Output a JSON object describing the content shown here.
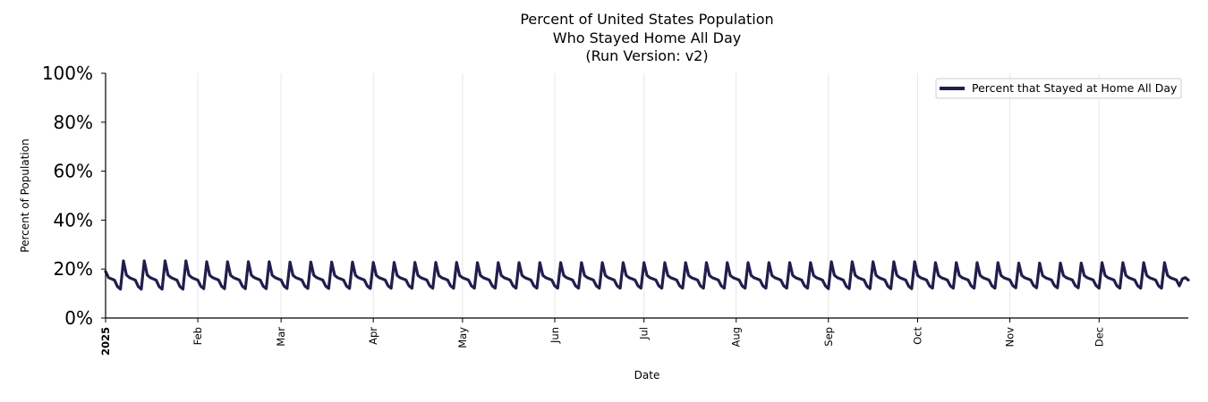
{
  "chart_data": {
    "type": "line",
    "title": [
      "Percent of United States Population",
      "Who Stayed Home All Day",
      "(Run Version: v2)"
    ],
    "xlabel": "Date",
    "ylabel": "Percent of Population",
    "ylim": [
      0,
      100
    ],
    "yticks": [
      "0%",
      "20%",
      "40%",
      "60%",
      "80%",
      "100%"
    ],
    "xlim": [
      "2025-01-01",
      "2025-12-31"
    ],
    "xticks": [
      {
        "date": "2025-01-01",
        "label": "2025",
        "bold": true
      },
      {
        "date": "2025-02-01",
        "label": "Feb"
      },
      {
        "date": "2025-03-01",
        "label": "Mar"
      },
      {
        "date": "2025-04-01",
        "label": "Apr"
      },
      {
        "date": "2025-05-01",
        "label": "May"
      },
      {
        "date": "2025-06-01",
        "label": "Jun"
      },
      {
        "date": "2025-07-01",
        "label": "Jul"
      },
      {
        "date": "2025-08-01",
        "label": "Aug"
      },
      {
        "date": "2025-09-01",
        "label": "Sep"
      },
      {
        "date": "2025-10-01",
        "label": "Oct"
      },
      {
        "date": "2025-11-01",
        "label": "Nov"
      },
      {
        "date": "2025-12-01",
        "label": "Dec"
      }
    ],
    "grid": "vertical",
    "legend": {
      "placement": "top-right",
      "entries": [
        "Percent that Stayed at Home All Day"
      ]
    },
    "series": [
      {
        "name": "Percent that Stayed at Home All Day",
        "color": "#1f1f4d",
        "weekly_pattern": {
          "start_date": "2025-01-01",
          "start_value": 19,
          "values": [
            16.5,
            16.0,
            15.5,
            13.0,
            12.0,
            23.0,
            17.5
          ],
          "amplitude_by_month": [
            1.05,
            1.0,
            0.98,
            0.96,
            0.95,
            0.95,
            0.95,
            0.95,
            1.0,
            0.95,
            0.92,
            0.95
          ],
          "end_values": [
            16,
            16.5,
            15.5
          ]
        }
      }
    ]
  }
}
